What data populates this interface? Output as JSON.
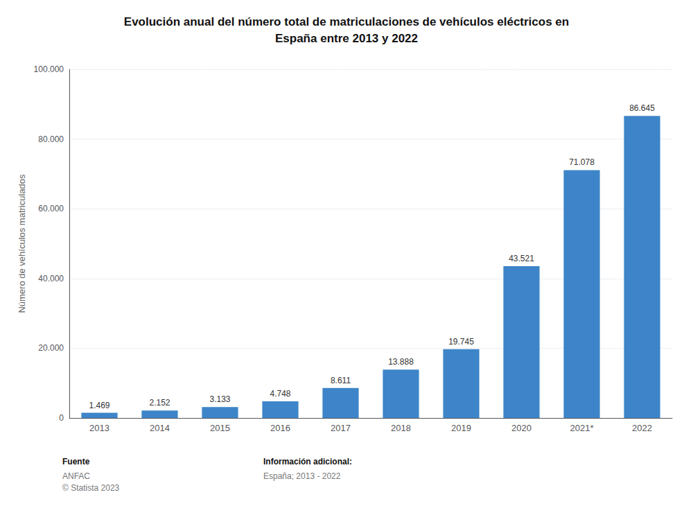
{
  "chart_data": {
    "type": "bar",
    "title": "Evolución anual del número total de matriculaciones de vehículos eléctricos en\nEspaña entre 2013 y 2022",
    "categories": [
      "2013",
      "2014",
      "2015",
      "2016",
      "2017",
      "2018",
      "2019",
      "2020",
      "2021*",
      "2022"
    ],
    "values": [
      1469,
      2152,
      3133,
      4748,
      8611,
      13888,
      19745,
      43521,
      71078,
      86645
    ],
    "value_labels": [
      "1.469",
      "2.152",
      "3.133",
      "4.748",
      "8.611",
      "13.888",
      "19.745",
      "43.521",
      "71.078",
      "86.645"
    ],
    "data_labels": true,
    "color": "#3d85c8",
    "ylabel": "Número de vehículos matriculados",
    "ylim": [
      0,
      100000
    ],
    "yticks": [
      0,
      {
        "value": 20000,
        "label": "20.000"
      },
      {
        "value": 40000,
        "label": "40.000"
      },
      {
        "value": 60000,
        "label": "60.000"
      },
      {
        "value": 80000,
        "label": "80.000"
      },
      {
        "value": 100000,
        "label": "100.000"
      }
    ],
    "grid": true,
    "annotations": [
      "Fuente",
      "ANFAC\n© Statista 2023",
      "Información adicional:",
      "España; 2013 - 2022"
    ]
  }
}
